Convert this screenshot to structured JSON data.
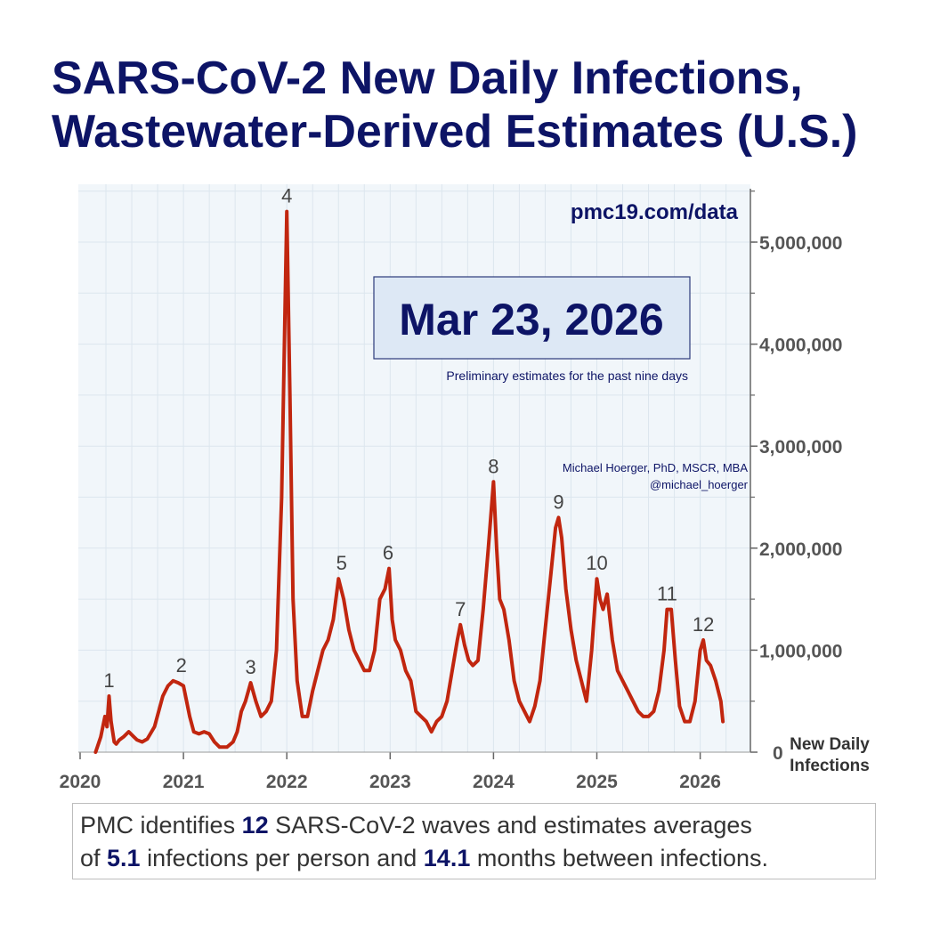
{
  "title": {
    "line1": "SARS-CoV-2 New Daily Infections,",
    "line2": "Wastewater-Derived Estimates (U.S.)"
  },
  "website": "pmc19.com/data",
  "date_box": {
    "date": "Mar 23, 2026",
    "note": "Preliminary estimates for the past nine days"
  },
  "author": {
    "name": "Michael Hoerger, PhD, MSCR, MBA",
    "handle": "@michael_hoerger"
  },
  "summary": {
    "t1": "PMC identifies ",
    "waves": "12",
    "t2": " SARS-CoV-2 waves and estimates averages",
    "t3": "of ",
    "infections_per_person": "5.1",
    "t4": " infections per person and ",
    "months_between": "14.1",
    "t5": " months between infections."
  },
  "colors": {
    "title": "#0d1466",
    "line": "#c1260f",
    "plot_bg": "#f1f6fa",
    "grid": "#dce6ee",
    "axis_text": "#555555",
    "date_box_bg": "#dde8f5"
  },
  "chart_data": {
    "type": "line",
    "ylabel": "New Daily Infections",
    "xlim": [
      2020.0,
      2026.5
    ],
    "ylim": [
      0,
      5500000
    ],
    "grid": true,
    "x_ticks": [
      2020,
      2021,
      2022,
      2023,
      2024,
      2025,
      2026
    ],
    "x_tick_labels": [
      "2020",
      "2021",
      "2022",
      "2023",
      "2024",
      "2025",
      "2026"
    ],
    "y_ticks": [
      0,
      1000000,
      2000000,
      3000000,
      4000000,
      5000000
    ],
    "y_tick_labels": [
      "0",
      "1,000,000",
      "2,000,000",
      "3,000,000",
      "4,000,000",
      "5,000,000"
    ],
    "series": [
      {
        "x": [
          2020.15,
          2020.2,
          2020.24,
          2020.26,
          2020.28,
          2020.3,
          2020.33,
          2020.35,
          2020.38,
          2020.42,
          2020.47,
          2020.52,
          2020.55,
          2020.6,
          2020.65,
          2020.72,
          2020.8,
          2020.85,
          2020.9,
          2020.95,
          2021.0,
          2021.03,
          2021.06,
          2021.1,
          2021.15,
          2021.2,
          2021.25,
          2021.3,
          2021.35,
          2021.42,
          2021.48,
          2021.52,
          2021.56,
          2021.6,
          2021.65,
          2021.7,
          2021.75,
          2021.8,
          2021.85,
          2021.9,
          2021.95,
          2021.98,
          2022.0,
          2022.03,
          2022.06,
          2022.1,
          2022.15,
          2022.2,
          2022.25,
          2022.3,
          2022.35,
          2022.4,
          2022.45,
          2022.5,
          2022.55,
          2022.6,
          2022.65,
          2022.7,
          2022.75,
          2022.8,
          2022.85,
          2022.9,
          2022.95,
          2022.99,
          2023.02,
          2023.05,
          2023.1,
          2023.15,
          2023.2,
          2023.25,
          2023.3,
          2023.35,
          2023.4,
          2023.45,
          2023.5,
          2023.55,
          2023.6,
          2023.65,
          2023.68,
          2023.72,
          2023.76,
          2023.8,
          2023.85,
          2023.9,
          2023.95,
          2024.0,
          2024.03,
          2024.06,
          2024.1,
          2024.15,
          2024.2,
          2024.25,
          2024.3,
          2024.35,
          2024.4,
          2024.45,
          2024.5,
          2024.55,
          2024.6,
          2024.63,
          2024.66,
          2024.7,
          2024.75,
          2024.8,
          2024.85,
          2024.9,
          2024.95,
          2025.0,
          2025.03,
          2025.06,
          2025.1,
          2025.15,
          2025.2,
          2025.25,
          2025.3,
          2025.35,
          2025.4,
          2025.45,
          2025.5,
          2025.55,
          2025.6,
          2025.65,
          2025.68,
          2025.72,
          2025.76,
          2025.8,
          2025.85,
          2025.9,
          2025.95,
          2026.0,
          2026.03,
          2026.06,
          2026.1,
          2026.15,
          2026.2,
          2026.22
        ],
        "y": [
          0,
          150000,
          350000,
          250000,
          550000,
          300000,
          100000,
          80000,
          120000,
          150000,
          200000,
          150000,
          120000,
          100000,
          130000,
          250000,
          550000,
          650000,
          700000,
          680000,
          650000,
          500000,
          350000,
          200000,
          180000,
          200000,
          180000,
          100000,
          50000,
          50000,
          100000,
          200000,
          400000,
          500000,
          680000,
          500000,
          350000,
          400000,
          500000,
          1000000,
          2500000,
          4200000,
          5300000,
          3500000,
          1500000,
          700000,
          350000,
          350000,
          600000,
          800000,
          1000000,
          1100000,
          1300000,
          1700000,
          1500000,
          1200000,
          1000000,
          900000,
          800000,
          800000,
          1000000,
          1500000,
          1600000,
          1800000,
          1300000,
          1100000,
          1000000,
          800000,
          700000,
          400000,
          350000,
          300000,
          200000,
          300000,
          350000,
          500000,
          800000,
          1100000,
          1250000,
          1050000,
          900000,
          850000,
          900000,
          1400000,
          2000000,
          2650000,
          2000000,
          1500000,
          1400000,
          1100000,
          700000,
          500000,
          400000,
          300000,
          450000,
          700000,
          1200000,
          1700000,
          2200000,
          2300000,
          2100000,
          1600000,
          1200000,
          900000,
          700000,
          500000,
          1000000,
          1700000,
          1500000,
          1400000,
          1550000,
          1100000,
          800000,
          700000,
          600000,
          500000,
          400000,
          350000,
          350000,
          400000,
          600000,
          1000000,
          1400000,
          1400000,
          900000,
          450000,
          300000,
          300000,
          500000,
          1000000,
          1100000,
          900000,
          850000,
          700000,
          500000,
          300000
        ]
      }
    ],
    "annotations": [
      {
        "label": "1",
        "x": 2020.28,
        "y": 550000
      },
      {
        "label": "2",
        "x": 2020.98,
        "y": 700000
      },
      {
        "label": "3",
        "x": 2021.65,
        "y": 680000
      },
      {
        "label": "4",
        "x": 2022.0,
        "y": 5300000
      },
      {
        "label": "5",
        "x": 2022.53,
        "y": 1700000
      },
      {
        "label": "6",
        "x": 2022.98,
        "y": 1800000
      },
      {
        "label": "7",
        "x": 2023.68,
        "y": 1250000
      },
      {
        "label": "8",
        "x": 2024.0,
        "y": 2650000
      },
      {
        "label": "9",
        "x": 2024.63,
        "y": 2300000
      },
      {
        "label": "10",
        "x": 2025.0,
        "y": 1700000
      },
      {
        "label": "11",
        "x": 2025.68,
        "y": 1400000
      },
      {
        "label": "12",
        "x": 2026.03,
        "y": 1100000
      }
    ]
  }
}
